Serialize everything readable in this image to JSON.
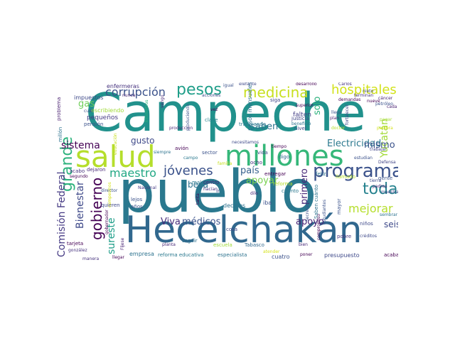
{
  "words": [
    {
      "text": "Campeche",
      "color": "#21918c"
    },
    {
      "text": "pueblo",
      "color": "#2a788e"
    },
    {
      "text": "Hecelchakán",
      "color": "#31688e"
    },
    {
      "text": "salud",
      "color": "#b5de2b"
    },
    {
      "text": "millones",
      "color": "#35b779"
    },
    {
      "text": "programa",
      "color": "#3b528b"
    },
    {
      "text": "pesos",
      "color": "#1f9e89"
    },
    {
      "text": "medicina",
      "color": "#c8e020"
    },
    {
      "text": "hospitales",
      "color": "#d2e21b"
    },
    {
      "text": "corrupción",
      "color": "#3b528b"
    },
    {
      "text": "grande",
      "color": "#2db27d"
    },
    {
      "text": "gobierno",
      "color": "#440154"
    },
    {
      "text": "jóvenes",
      "color": "#3b528b"
    },
    {
      "text": "toda",
      "color": "#26828e"
    },
    {
      "text": "mejorar",
      "color": "#b5de2b"
    },
    {
      "text": "Yucatán",
      "color": "#a2da37"
    },
    {
      "text": "Electricidad",
      "color": "#2a788e"
    },
    {
      "text": "maestro",
      "color": "#22a884"
    },
    {
      "text": "sistema",
      "color": "#440154"
    },
    {
      "text": "Comisión Federal",
      "color": "#443983"
    },
    {
      "text": "Bienestar",
      "color": "#3e4989"
    },
    {
      "text": "sureste",
      "color": "#1f9e89"
    },
    {
      "text": "Viva",
      "color": "#472d7b"
    },
    {
      "text": "médicos",
      "color": "#3b528b"
    },
    {
      "text": "apoyo",
      "color": "#482475"
    },
    {
      "text": "apoyar",
      "color": "#7ad151"
    },
    {
      "text": "seis",
      "color": "#3e4989"
    },
    {
      "text": "mismo",
      "color": "#3b528b"
    },
    {
      "text": "primero",
      "color": "#482878"
    },
    {
      "text": "país",
      "color": "#35608d"
    },
    {
      "text": "saben",
      "color": "#2c728e"
    },
    {
      "text": "solo",
      "color": "#2db27d"
    },
    {
      "text": "gas",
      "color": "#6ece58"
    },
    {
      "text": "beca",
      "color": "#2c728e"
    },
    {
      "text": "gusto",
      "color": "#3e4989"
    },
    {
      "text": "pequeños",
      "color": "#443983"
    },
    {
      "text": "impuestos",
      "color": "#3e4989"
    },
    {
      "text": "enfermeras",
      "color": "#46327e"
    },
    {
      "text": "pesos mensuales",
      "color": "#2c728e"
    },
    {
      "text": "desarrollo",
      "color": "#440154"
    },
    {
      "text": "Carlos",
      "color": "#46327e"
    },
    {
      "text": "terminan",
      "color": "#46327e"
    },
    {
      "text": "demandas",
      "color": "#440154"
    },
    {
      "text": "cáncer",
      "color": "#482475"
    },
    {
      "text": "problema",
      "color": "#481f70"
    },
    {
      "text": "millón",
      "color": "#2c728e"
    },
    {
      "text": "pensión",
      "color": "#3b528b"
    },
    {
      "text": "escribiendo",
      "color": "#a0da39"
    },
    {
      "text": "kilómetros",
      "color": "#2db27d"
    },
    {
      "text": "acciones",
      "color": "#3e4989"
    },
    {
      "text": "siga",
      "color": "#404688"
    },
    {
      "text": "vez",
      "color": "#440154"
    },
    {
      "text": "clave",
      "color": "#25848e"
    },
    {
      "text": "justicia",
      "color": "#414487"
    },
    {
      "text": "nivel",
      "color": "#3e4989"
    },
    {
      "text": "falten",
      "color": "#433e85"
    },
    {
      "text": "plan",
      "color": "#481b6d"
    },
    {
      "text": "fortalecer",
      "color": "#3e4989"
    },
    {
      "text": "petróleo",
      "color": "#3b528b"
    },
    {
      "text": "pagar",
      "color": "#a5db36"
    },
    {
      "text": "palabra",
      "color": "#d5e21a"
    },
    {
      "text": "cada",
      "color": "#481f70"
    },
    {
      "text": "trabajar",
      "color": "#404688"
    },
    {
      "text": "trabajando",
      "color": "#2a788e"
    },
    {
      "text": "producción",
      "color": "#482878"
    },
    {
      "text": "produciendo",
      "color": "#3b528b"
    },
    {
      "text": "avión",
      "color": "#440154"
    },
    {
      "text": "campo",
      "color": "#2a788e"
    },
    {
      "text": "centro",
      "color": "#482878"
    },
    {
      "text": "hacían",
      "color": "#46327e"
    },
    {
      "text": "Nacional",
      "color": "#443983"
    },
    {
      "text": "necesitamos",
      "color": "#3e4989"
    },
    {
      "text": "vida",
      "color": "#404688"
    },
    {
      "text": "ocho",
      "color": "#46327e"
    },
    {
      "text": "digo",
      "color": "#31688e"
    },
    {
      "text": "entregar",
      "color": "#440154"
    },
    {
      "text": "feliz",
      "color": "#2c728e"
    },
    {
      "text": "llamado",
      "color": "#b5de2b"
    },
    {
      "text": "gente",
      "color": "#3b528b"
    },
    {
      "text": "maestra",
      "color": "#3e4989"
    },
    {
      "text": "tierra",
      "color": "#3e4989"
    },
    {
      "text": "padres",
      "color": "#482475"
    },
    {
      "text": "Defensa",
      "color": "#414487"
    },
    {
      "text": "sembrar",
      "color": "#2c728e"
    },
    {
      "text": "créditos",
      "color": "#3e4989"
    },
    {
      "text": "niños",
      "color": "#3e4989"
    },
    {
      "text": "pobre",
      "color": "#46327e"
    },
    {
      "text": "mayor",
      "color": "#3b528b"
    },
    {
      "text": "Saben cuánto",
      "color": "#2c728e"
    },
    {
      "text": "estudiantes",
      "color": "#3b528b"
    },
    {
      "text": "cuánto",
      "color": "#2a788e"
    },
    {
      "text": "reforma",
      "color": "#b5de2b"
    },
    {
      "text": "iba",
      "color": "#3b528b"
    },
    {
      "text": "dilo",
      "color": "#482878"
    },
    {
      "text": "ir",
      "color": "#3e4989"
    },
    {
      "text": "decirles",
      "color": "#2c728e"
    },
    {
      "text": "lejos",
      "color": "#3b528b"
    },
    {
      "text": "años",
      "color": "#3b528b"
    },
    {
      "text": "quieren",
      "color": "#3e4989"
    },
    {
      "text": "dejaron",
      "color": "#482878"
    },
    {
      "text": "acabo",
      "color": "#46327e"
    },
    {
      "text": "segundo",
      "color": "#440154"
    },
    {
      "text": "educación",
      "color": "#c8e020"
    },
    {
      "text": "tarjeta",
      "color": "#440154"
    },
    {
      "text": "gonzález",
      "color": "#46327e"
    },
    {
      "text": "manera",
      "color": "#46327e"
    },
    {
      "text": "llegar",
      "color": "#440154"
    },
    {
      "text": "Fíjese",
      "color": "#482475"
    },
    {
      "text": "gobernador",
      "color": "#440154"
    },
    {
      "text": "director",
      "color": "#3b528b"
    },
    {
      "text": "empresa",
      "color": "#2c728e"
    },
    {
      "text": "reforma educativa",
      "color": "#2a788e"
    },
    {
      "text": "especialista",
      "color": "#2c728e"
    },
    {
      "text": "planta",
      "color": "#482878"
    },
    {
      "text": "seguir",
      "color": "#2c728e"
    },
    {
      "text": "escuela",
      "color": "#a0da39"
    },
    {
      "text": "Tabasco",
      "color": "#31688e"
    },
    {
      "text": "cuatro",
      "color": "#3b528b"
    },
    {
      "text": "poner",
      "color": "#440154"
    },
    {
      "text": "presupuesto",
      "color": "#3e4989"
    },
    {
      "text": "acabar",
      "color": "#440154"
    },
    {
      "text": "bien",
      "color": "#482878"
    },
    {
      "text": "compromiso",
      "color": "#440154"
    },
    {
      "text": "atender",
      "color": "#d5e21a"
    },
    {
      "text": "cosa",
      "color": "#3e4989"
    },
    {
      "text": "nunca",
      "color": "#482475"
    },
    {
      "text": "cuál",
      "color": "#3b528b"
    },
    {
      "text": "igual",
      "color": "#3b528b"
    },
    {
      "text": "elefante",
      "color": "#3e4989"
    },
    {
      "text": "superior",
      "color": "#440154"
    },
    {
      "text": "beneficio",
      "color": "#2c728e"
    },
    {
      "text": "llega",
      "color": "#3b528b"
    },
    {
      "text": "doctor",
      "color": "#b5de2b"
    },
    {
      "text": "tiempo",
      "color": "#440154"
    },
    {
      "text": "sector",
      "color": "#3b528b"
    },
    {
      "text": "siempre",
      "color": "#2c728e"
    },
    {
      "text": "mal",
      "color": "#2a788e"
    },
    {
      "text": "familia",
      "color": "#c8e020"
    },
    {
      "text": "tanta",
      "color": "#440154"
    },
    {
      "text": "Secretario",
      "color": "#3b528b"
    },
    {
      "text": "estudian",
      "color": "#3b528b"
    },
    {
      "text": "nueve",
      "color": "#440154"
    },
    {
      "text": "nieto",
      "color": "#3e4989"
    },
    {
      "text": "vengo",
      "color": "#482878"
    },
    {
      "text": "campesinos",
      "color": "#d5e21a"
    }
  ]
}
